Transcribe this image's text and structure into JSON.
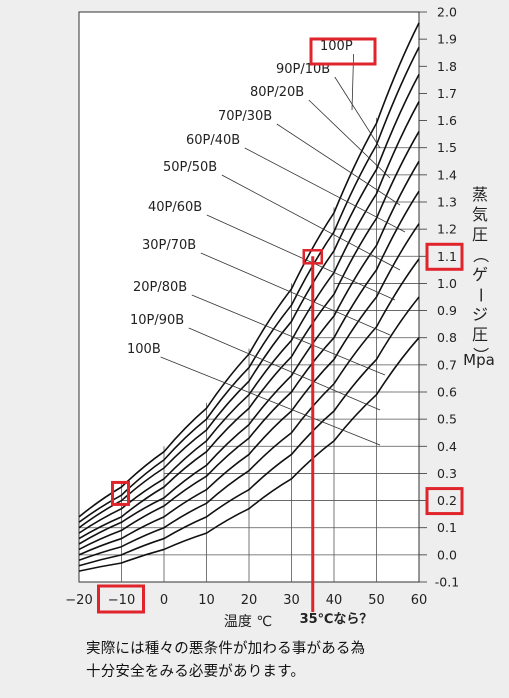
{
  "chart_data": {
    "type": "line",
    "xlabel": "温度 ℃",
    "ylabel_vertical": "蒸気圧（ゲージ圧）",
    "ylabel_unit": "Mpa",
    "x_ticks": [
      -20,
      -10,
      0,
      10,
      20,
      30,
      40,
      50,
      60
    ],
    "y_ticks": [
      -0.1,
      0.0,
      0.1,
      0.2,
      0.3,
      0.4,
      0.5,
      0.6,
      0.7,
      0.8,
      0.9,
      1.0,
      1.1,
      1.2,
      1.3,
      1.4,
      1.5,
      1.6,
      1.7,
      1.8,
      1.9,
      2.0
    ],
    "xlim": [
      -20,
      60
    ],
    "ylim": [
      -0.1,
      2.0
    ],
    "series": [
      {
        "name": "100P",
        "x": [
          -20,
          -10,
          0,
          10,
          20,
          30,
          40,
          50,
          60
        ],
        "y": [
          0.14,
          0.25,
          0.38,
          0.54,
          0.74,
          0.98,
          1.26,
          1.59,
          1.96
        ]
      },
      {
        "name": "90P/10B",
        "x": [
          -20,
          -10,
          0,
          10,
          20,
          30,
          40,
          50,
          60
        ],
        "y": [
          0.12,
          0.22,
          0.35,
          0.5,
          0.69,
          0.92,
          1.19,
          1.51,
          1.87
        ]
      },
      {
        "name": "80P/20B",
        "x": [
          -20,
          -10,
          0,
          10,
          20,
          30,
          40,
          50,
          60
        ],
        "y": [
          0.1,
          0.2,
          0.32,
          0.46,
          0.64,
          0.86,
          1.12,
          1.42,
          1.77
        ]
      },
      {
        "name": "70P/30B",
        "x": [
          -20,
          -10,
          0,
          10,
          20,
          30,
          40,
          50,
          60
        ],
        "y": [
          0.08,
          0.17,
          0.28,
          0.42,
          0.59,
          0.79,
          1.04,
          1.33,
          1.67
        ]
      },
      {
        "name": "60P/40B",
        "x": [
          -20,
          -10,
          0,
          10,
          20,
          30,
          40,
          50,
          60
        ],
        "y": [
          0.06,
          0.14,
          0.25,
          0.38,
          0.54,
          0.73,
          0.96,
          1.24,
          1.56
        ]
      },
      {
        "name": "50P/50B",
        "x": [
          -20,
          -10,
          0,
          10,
          20,
          30,
          40,
          50,
          60
        ],
        "y": [
          0.04,
          0.12,
          0.21,
          0.33,
          0.48,
          0.66,
          0.88,
          1.14,
          1.45
        ]
      },
      {
        "name": "40P/60B",
        "x": [
          -20,
          -10,
          0,
          10,
          20,
          30,
          40,
          50,
          60
        ],
        "y": [
          0.02,
          0.09,
          0.18,
          0.29,
          0.43,
          0.6,
          0.8,
          1.05,
          1.34
        ]
      },
      {
        "name": "30P/70B",
        "x": [
          -20,
          -10,
          0,
          10,
          20,
          30,
          40,
          50,
          60
        ],
        "y": [
          0.0,
          0.06,
          0.14,
          0.24,
          0.37,
          0.53,
          0.72,
          0.95,
          1.22
        ]
      },
      {
        "name": "20P/80B",
        "x": [
          -20,
          -10,
          0,
          10,
          20,
          30,
          40,
          50,
          60
        ],
        "y": [
          -0.02,
          0.03,
          0.1,
          0.19,
          0.31,
          0.45,
          0.63,
          0.84,
          1.09
        ]
      },
      {
        "name": "10P/90B",
        "x": [
          -20,
          -10,
          0,
          10,
          20,
          30,
          40,
          50,
          60
        ],
        "y": [
          -0.04,
          0.0,
          0.06,
          0.14,
          0.24,
          0.37,
          0.53,
          0.72,
          0.95
        ]
      },
      {
        "name": "100B",
        "x": [
          -20,
          -10,
          0,
          10,
          20,
          30,
          40,
          50,
          60
        ],
        "y": [
          -0.06,
          -0.03,
          0.02,
          0.08,
          0.17,
          0.28,
          0.42,
          0.59,
          0.8
        ]
      }
    ],
    "series_label_y": [
      1.9,
      1.8,
      1.7,
      1.6,
      1.5,
      1.4,
      1.25,
      1.1,
      0.95,
      0.8,
      0.65
    ],
    "grid": true,
    "annotations": {
      "highlight_x_value": 35,
      "highlight_y_value": 1.1,
      "marker_label": "35℃なら？",
      "boxed_x_tick": -10,
      "boxed_y_ticks": [
        1.1,
        0.2
      ],
      "boxed_series": "100P",
      "color": "#e0242b"
    }
  },
  "note": {
    "line1": "実際には種々の悪条件が加わる事がある為",
    "line2": "十分安全をみる必要があります。"
  },
  "colors": {
    "background": "#eeeeee",
    "plot": "#ffffff",
    "line": "#111111",
    "accent": "#e0242b"
  }
}
